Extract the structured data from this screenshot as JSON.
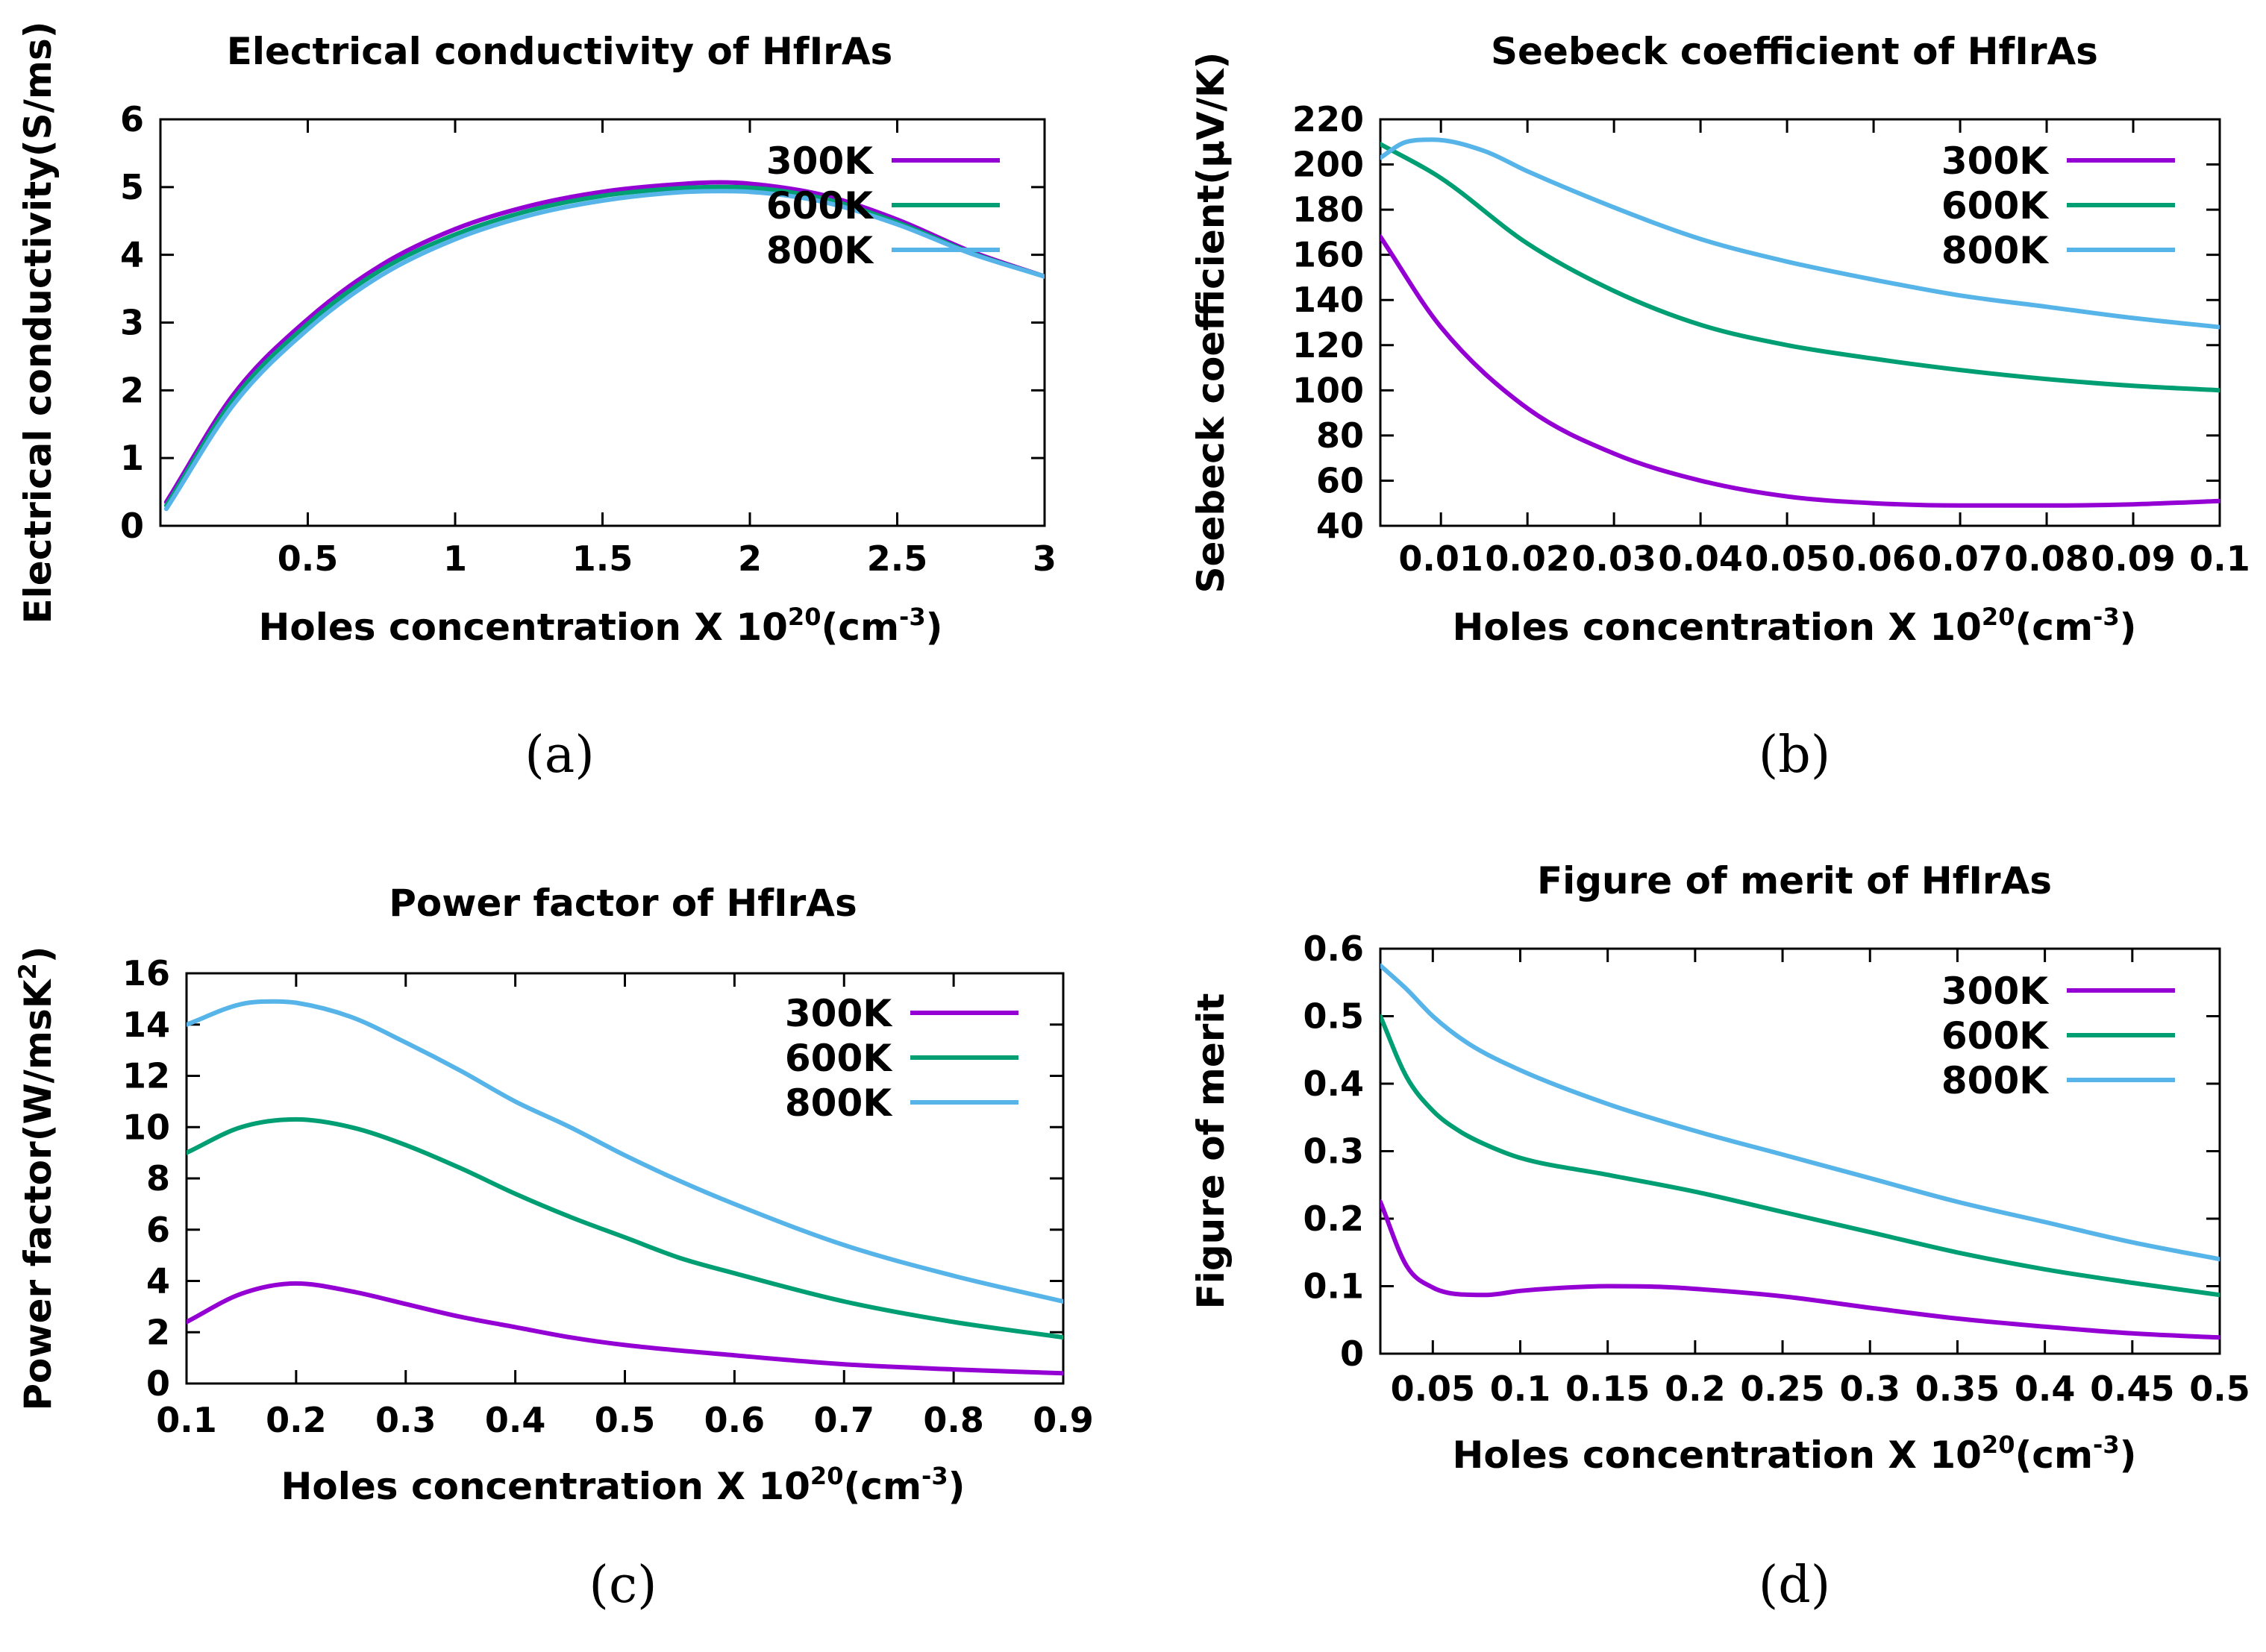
{
  "chart_data": [
    {
      "id": "a",
      "type": "line",
      "title": "Electrical conductivity of HfIrAs",
      "caption": "(a)",
      "ylabel": "Electrical conductivity(S/ms)",
      "xlabel_main": "Holes concentration X 10",
      "xlabel_sup1": "20",
      "xlabel_mid": "(cm",
      "xlabel_sup2": "-3",
      "xlabel_end": ")",
      "xlim": [
        0,
        3
      ],
      "ylim": [
        0,
        6
      ],
      "xticks": [
        0.5,
        1,
        1.5,
        2,
        2.5,
        3
      ],
      "xtick_labels": [
        "0.5",
        "1",
        "1.5",
        "2",
        "2.5",
        "3"
      ],
      "yticks": [
        0,
        1,
        2,
        3,
        4,
        5,
        6
      ],
      "ytick_labels": [
        "0",
        "1",
        "2",
        "3",
        "4",
        "5",
        "6"
      ],
      "legend_position": "top-right",
      "series": [
        {
          "name": "300K",
          "x": [
            0.02,
            0.25,
            0.5,
            0.75,
            1.0,
            1.25,
            1.5,
            1.75,
            1.9,
            2.0,
            2.25,
            2.5,
            2.75,
            3.0
          ],
          "values": [
            0.35,
            1.95,
            3.05,
            3.85,
            4.38,
            4.72,
            4.93,
            5.04,
            5.07,
            5.05,
            4.88,
            4.52,
            4.05,
            3.68
          ]
        },
        {
          "name": "600K",
          "x": [
            0.02,
            0.25,
            0.5,
            0.75,
            1.0,
            1.25,
            1.5,
            1.75,
            1.9,
            2.0,
            2.25,
            2.5,
            2.75,
            3.0
          ],
          "values": [
            0.3,
            1.88,
            2.98,
            3.78,
            4.3,
            4.65,
            4.87,
            4.98,
            5.0,
            4.99,
            4.83,
            4.48,
            4.03,
            3.68
          ]
        },
        {
          "name": "800K",
          "x": [
            0.02,
            0.25,
            0.5,
            0.75,
            1.0,
            1.25,
            1.5,
            1.75,
            1.9,
            2.0,
            2.25,
            2.5,
            2.75,
            3.0
          ],
          "values": [
            0.25,
            1.8,
            2.9,
            3.7,
            4.23,
            4.58,
            4.8,
            4.92,
            4.94,
            4.93,
            4.78,
            4.45,
            4.02,
            3.68
          ]
        }
      ]
    },
    {
      "id": "b",
      "type": "line",
      "title": "Seebeck coefficient of HfIrAs",
      "caption": "(b)",
      "ylabel": "Seebeck coefficient(µV/K)",
      "xlabel_main": "Holes concentration X 10",
      "xlabel_sup1": "20",
      "xlabel_mid": "(cm",
      "xlabel_sup2": "-3",
      "xlabel_end": ")",
      "xlim": [
        0.003,
        0.1
      ],
      "ylim": [
        40,
        220
      ],
      "xticks": [
        0.01,
        0.02,
        0.03,
        0.04,
        0.05,
        0.06,
        0.07,
        0.08,
        0.09,
        0.1
      ],
      "xtick_labels": [
        "0.01",
        "0.02",
        "0.03",
        "0.04",
        "0.05",
        "0.06",
        "0.07",
        "0.08",
        "0.09",
        "0.1"
      ],
      "yticks": [
        40,
        60,
        80,
        100,
        120,
        140,
        160,
        180,
        200,
        220
      ],
      "ytick_labels": [
        "40",
        "60",
        "80",
        "100",
        "120",
        "140",
        "160",
        "180",
        "200",
        "220"
      ],
      "legend_position": "top-right",
      "series": [
        {
          "name": "300K",
          "x": [
            0.003,
            0.01,
            0.02,
            0.03,
            0.04,
            0.05,
            0.06,
            0.07,
            0.08,
            0.09,
            0.1
          ],
          "values": [
            168,
            128,
            92,
            72,
            60,
            53,
            50,
            49,
            49,
            49.5,
            51
          ]
        },
        {
          "name": "600K",
          "x": [
            0.003,
            0.01,
            0.02,
            0.03,
            0.04,
            0.05,
            0.06,
            0.07,
            0.08,
            0.09,
            0.1
          ],
          "values": [
            209,
            194,
            165,
            144,
            129,
            120,
            114,
            109,
            105,
            102,
            100
          ]
        },
        {
          "name": "800K",
          "x": [
            0.003,
            0.006,
            0.009,
            0.015,
            0.02,
            0.03,
            0.04,
            0.05,
            0.06,
            0.07,
            0.08,
            0.09,
            0.1
          ],
          "values": [
            203,
            210,
            211,
            206,
            197,
            181,
            167,
            157,
            149,
            142,
            137,
            132,
            128
          ]
        }
      ]
    },
    {
      "id": "c",
      "type": "line",
      "title": "Power factor of HfIrAs",
      "caption": "(c)",
      "ylabel_main": "Power factor(W/msK",
      "ylabel_sup": "2",
      "ylabel_end": ")",
      "xlabel_main": "Holes concentration X 10",
      "xlabel_sup1": "20",
      "xlabel_mid": "(cm",
      "xlabel_sup2": "-3",
      "xlabel_end": ")",
      "xlim": [
        0.1,
        0.9
      ],
      "ylim": [
        0,
        16
      ],
      "xticks": [
        0.1,
        0.2,
        0.3,
        0.4,
        0.5,
        0.6,
        0.7,
        0.8,
        0.9
      ],
      "xtick_labels": [
        "0.1",
        "0.2",
        "0.3",
        "0.4",
        "0.5",
        "0.6",
        "0.7",
        "0.8",
        "0.9"
      ],
      "yticks": [
        0,
        2,
        4,
        6,
        8,
        10,
        12,
        14,
        16
      ],
      "ytick_labels": [
        "0",
        "2",
        "4",
        "6",
        "8",
        "10",
        "12",
        "14",
        "16"
      ],
      "legend_position": "top-right",
      "series": [
        {
          "name": "300K",
          "x": [
            0.1,
            0.15,
            0.2,
            0.25,
            0.3,
            0.35,
            0.4,
            0.45,
            0.5,
            0.6,
            0.7,
            0.8,
            0.9
          ],
          "values": [
            2.4,
            3.5,
            3.9,
            3.6,
            3.1,
            2.6,
            2.2,
            1.8,
            1.5,
            1.1,
            0.75,
            0.55,
            0.4
          ]
        },
        {
          "name": "600K",
          "x": [
            0.1,
            0.15,
            0.2,
            0.25,
            0.3,
            0.35,
            0.4,
            0.45,
            0.5,
            0.55,
            0.6,
            0.7,
            0.8,
            0.9
          ],
          "values": [
            9.0,
            10.0,
            10.3,
            10.0,
            9.3,
            8.4,
            7.4,
            6.5,
            5.7,
            4.9,
            4.3,
            3.2,
            2.4,
            1.8
          ]
        },
        {
          "name": "800K",
          "x": [
            0.1,
            0.15,
            0.18,
            0.2,
            0.25,
            0.3,
            0.35,
            0.4,
            0.45,
            0.5,
            0.55,
            0.6,
            0.7,
            0.8,
            0.9
          ],
          "values": [
            14.0,
            14.8,
            14.9,
            14.85,
            14.3,
            13.3,
            12.2,
            11.0,
            10.0,
            8.9,
            7.9,
            7.0,
            5.4,
            4.2,
            3.2
          ]
        }
      ]
    },
    {
      "id": "d",
      "type": "line",
      "title": "Figure of merit of HfIrAs",
      "caption": "(d)",
      "ylabel": "Figure of merit",
      "xlabel_main": "Holes concentration X 10",
      "xlabel_sup1": "20",
      "xlabel_mid": "(cm",
      "xlabel_sup2": "-3",
      "xlabel_end": ")",
      "xlim": [
        0.02,
        0.5
      ],
      "ylim": [
        0,
        0.6
      ],
      "xticks": [
        0.05,
        0.1,
        0.15,
        0.2,
        0.25,
        0.3,
        0.35,
        0.4,
        0.45,
        0.5
      ],
      "xtick_labels": [
        "0.05",
        "0.1",
        "0.15",
        "0.2",
        "0.25",
        "0.3",
        "0.35",
        "0.4",
        "0.45",
        "0.5"
      ],
      "yticks": [
        0,
        0.1,
        0.2,
        0.3,
        0.4,
        0.5,
        0.6
      ],
      "ytick_labels": [
        "0",
        "0.1",
        "0.2",
        "0.3",
        "0.4",
        "0.5",
        "0.6"
      ],
      "legend_position": "top-right",
      "series": [
        {
          "name": "300K",
          "x": [
            0.02,
            0.035,
            0.05,
            0.065,
            0.08,
            0.1,
            0.12,
            0.15,
            0.18,
            0.2,
            0.25,
            0.3,
            0.35,
            0.4,
            0.45,
            0.5
          ],
          "values": [
            0.225,
            0.13,
            0.098,
            0.088,
            0.087,
            0.093,
            0.097,
            0.1,
            0.099,
            0.096,
            0.085,
            0.068,
            0.052,
            0.04,
            0.03,
            0.024
          ]
        },
        {
          "name": "600K",
          "x": [
            0.02,
            0.035,
            0.05,
            0.065,
            0.08,
            0.1,
            0.15,
            0.2,
            0.25,
            0.3,
            0.35,
            0.4,
            0.45,
            0.5
          ],
          "values": [
            0.5,
            0.41,
            0.36,
            0.33,
            0.31,
            0.29,
            0.265,
            0.24,
            0.21,
            0.18,
            0.15,
            0.125,
            0.105,
            0.087
          ]
        },
        {
          "name": "800K",
          "x": [
            0.02,
            0.035,
            0.05,
            0.07,
            0.1,
            0.15,
            0.2,
            0.25,
            0.3,
            0.35,
            0.4,
            0.45,
            0.5
          ],
          "values": [
            0.575,
            0.54,
            0.5,
            0.46,
            0.42,
            0.37,
            0.33,
            0.295,
            0.26,
            0.225,
            0.195,
            0.165,
            0.14
          ]
        }
      ]
    }
  ],
  "colors": {
    "300K": "#9400D3",
    "600K": "#009E73",
    "800K": "#56B4E9",
    "frame": "#000000"
  }
}
